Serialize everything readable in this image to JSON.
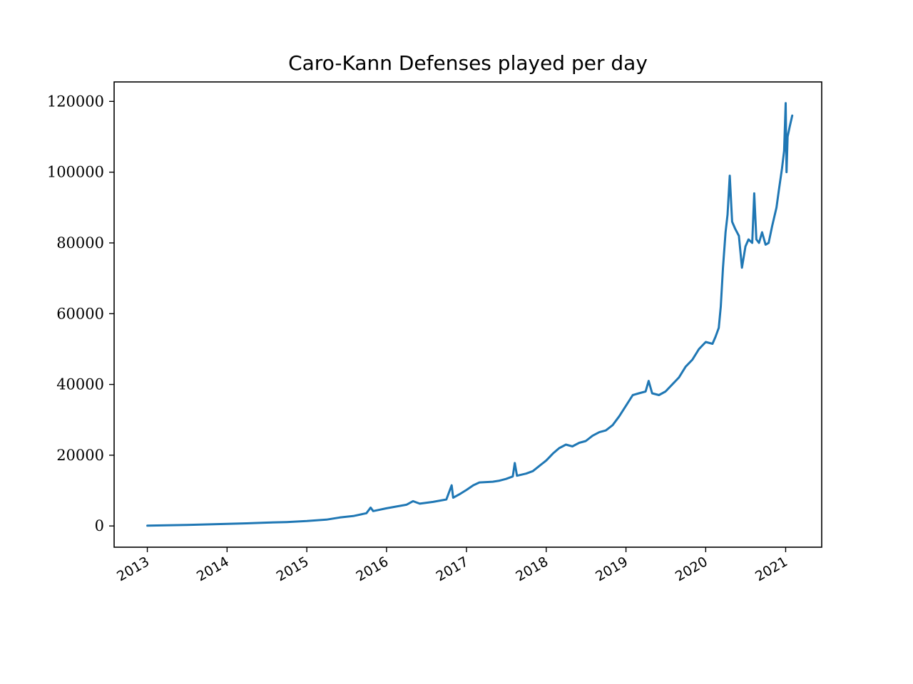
{
  "chart_data": {
    "type": "line",
    "title": "Caro-Kann Defenses played per day",
    "xlabel": "",
    "ylabel": "",
    "xlim": [
      "2012-08-02",
      "2021-06-15"
    ],
    "ylim": [
      -6000,
      125500
    ],
    "x_ticks": [
      "2013",
      "2014",
      "2015",
      "2016",
      "2017",
      "2018",
      "2019",
      "2020",
      "2021"
    ],
    "y_ticks": [
      0,
      20000,
      40000,
      60000,
      80000,
      100000,
      120000
    ],
    "y_tick_labels": [
      "0",
      "20000",
      "40000",
      "60000",
      "80000",
      "100000",
      "120000"
    ],
    "grid": false,
    "legend": "none",
    "series": [
      {
        "color": "#1f77b4",
        "points": [
          [
            "2013-01-01",
            80
          ],
          [
            "2013-04-01",
            180
          ],
          [
            "2013-07-01",
            300
          ],
          [
            "2013-10-01",
            450
          ],
          [
            "2014-01-01",
            600
          ],
          [
            "2014-04-01",
            750
          ],
          [
            "2014-07-01",
            950
          ],
          [
            "2014-10-01",
            1100
          ],
          [
            "2015-01-01",
            1400
          ],
          [
            "2015-04-01",
            1800
          ],
          [
            "2015-06-01",
            2400
          ],
          [
            "2015-08-01",
            2800
          ],
          [
            "2015-10-01",
            3600
          ],
          [
            "2015-10-20",
            5200
          ],
          [
            "2015-11-01",
            4200
          ],
          [
            "2016-01-01",
            5000
          ],
          [
            "2016-04-01",
            6000
          ],
          [
            "2016-05-01",
            7000
          ],
          [
            "2016-06-01",
            6300
          ],
          [
            "2016-08-01",
            6800
          ],
          [
            "2016-10-01",
            7500
          ],
          [
            "2016-10-25",
            11500
          ],
          [
            "2016-11-01",
            8000
          ],
          [
            "2016-12-01",
            9000
          ],
          [
            "2017-01-01",
            10200
          ],
          [
            "2017-02-01",
            11500
          ],
          [
            "2017-03-01",
            12300
          ],
          [
            "2017-05-01",
            12500
          ],
          [
            "2017-06-01",
            12800
          ],
          [
            "2017-07-01",
            13300
          ],
          [
            "2017-08-01",
            14000
          ],
          [
            "2017-08-10",
            17800
          ],
          [
            "2017-08-20",
            14200
          ],
          [
            "2017-10-01",
            14800
          ],
          [
            "2017-11-01",
            15500
          ],
          [
            "2017-12-01",
            17000
          ],
          [
            "2018-01-01",
            18500
          ],
          [
            "2018-02-01",
            20500
          ],
          [
            "2018-03-01",
            22000
          ],
          [
            "2018-04-01",
            23000
          ],
          [
            "2018-05-01",
            22500
          ],
          [
            "2018-06-01",
            23500
          ],
          [
            "2018-07-01",
            24000
          ],
          [
            "2018-08-01",
            25500
          ],
          [
            "2018-09-01",
            26500
          ],
          [
            "2018-10-01",
            27000
          ],
          [
            "2018-11-01",
            28500
          ],
          [
            "2018-12-01",
            31000
          ],
          [
            "2019-01-01",
            34000
          ],
          [
            "2019-02-01",
            37000
          ],
          [
            "2019-03-01",
            37500
          ],
          [
            "2019-04-01",
            38000
          ],
          [
            "2019-04-15",
            41000
          ],
          [
            "2019-05-01",
            37500
          ],
          [
            "2019-06-01",
            37000
          ],
          [
            "2019-07-01",
            38000
          ],
          [
            "2019-08-01",
            40000
          ],
          [
            "2019-09-01",
            42000
          ],
          [
            "2019-10-01",
            45000
          ],
          [
            "2019-11-01",
            47000
          ],
          [
            "2019-12-01",
            50000
          ],
          [
            "2020-01-01",
            52000
          ],
          [
            "2020-02-01",
            51500
          ],
          [
            "2020-02-15",
            53500
          ],
          [
            "2020-03-01",
            56000
          ],
          [
            "2020-03-10",
            62000
          ],
          [
            "2020-03-20",
            73000
          ],
          [
            "2020-04-01",
            83000
          ],
          [
            "2020-04-10",
            88000
          ],
          [
            "2020-04-20",
            99000
          ],
          [
            "2020-05-01",
            86000
          ],
          [
            "2020-05-15",
            84000
          ],
          [
            "2020-06-01",
            82000
          ],
          [
            "2020-06-15",
            73000
          ],
          [
            "2020-07-01",
            79000
          ],
          [
            "2020-07-15",
            81000
          ],
          [
            "2020-08-01",
            80000
          ],
          [
            "2020-08-10",
            94000
          ],
          [
            "2020-08-20",
            81000
          ],
          [
            "2020-09-01",
            80000
          ],
          [
            "2020-09-15",
            83000
          ],
          [
            "2020-10-01",
            79500
          ],
          [
            "2020-10-15",
            80000
          ],
          [
            "2020-11-01",
            85000
          ],
          [
            "2020-11-20",
            90000
          ],
          [
            "2020-12-01",
            95000
          ],
          [
            "2020-12-15",
            101000
          ],
          [
            "2020-12-25",
            106000
          ],
          [
            "2021-01-01",
            119500
          ],
          [
            "2021-01-05",
            100000
          ],
          [
            "2021-01-10",
            110000
          ],
          [
            "2021-01-20",
            113000
          ],
          [
            "2021-01-31",
            116000
          ]
        ]
      }
    ]
  }
}
